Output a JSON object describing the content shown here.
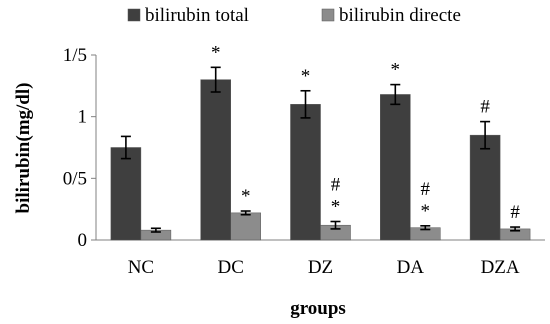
{
  "chart_data": {
    "type": "bar",
    "categories": [
      "NC",
      "DC",
      "DZ",
      "DA",
      "DZA"
    ],
    "series": [
      {
        "name": "bilirubin total",
        "color": "#3f3f3f",
        "values": [
          0.75,
          1.3,
          1.1,
          1.18,
          0.85
        ],
        "errors": [
          0.09,
          0.1,
          0.11,
          0.08,
          0.11
        ],
        "annotations": [
          "",
          "*",
          "*",
          "*",
          "#"
        ]
      },
      {
        "name": "bilirubin directe",
        "color": "#8c8c8c",
        "values": [
          0.08,
          0.22,
          0.12,
          0.1,
          0.09
        ],
        "errors": [
          0.015,
          0.015,
          0.03,
          0.015,
          0.015
        ],
        "annotations": [
          "",
          "*",
          "#\n*",
          "#\n*",
          "#"
        ]
      }
    ],
    "xlabel": "groups",
    "ylabel": "bilirubin(mg/dl)",
    "ylim": [
      0,
      1.5
    ],
    "yticks": [
      0,
      0.5,
      1,
      1.5
    ],
    "ytick_labels": [
      "0",
      "0/5",
      "1",
      "1/5"
    ],
    "grid": false,
    "legend_position": "top"
  }
}
